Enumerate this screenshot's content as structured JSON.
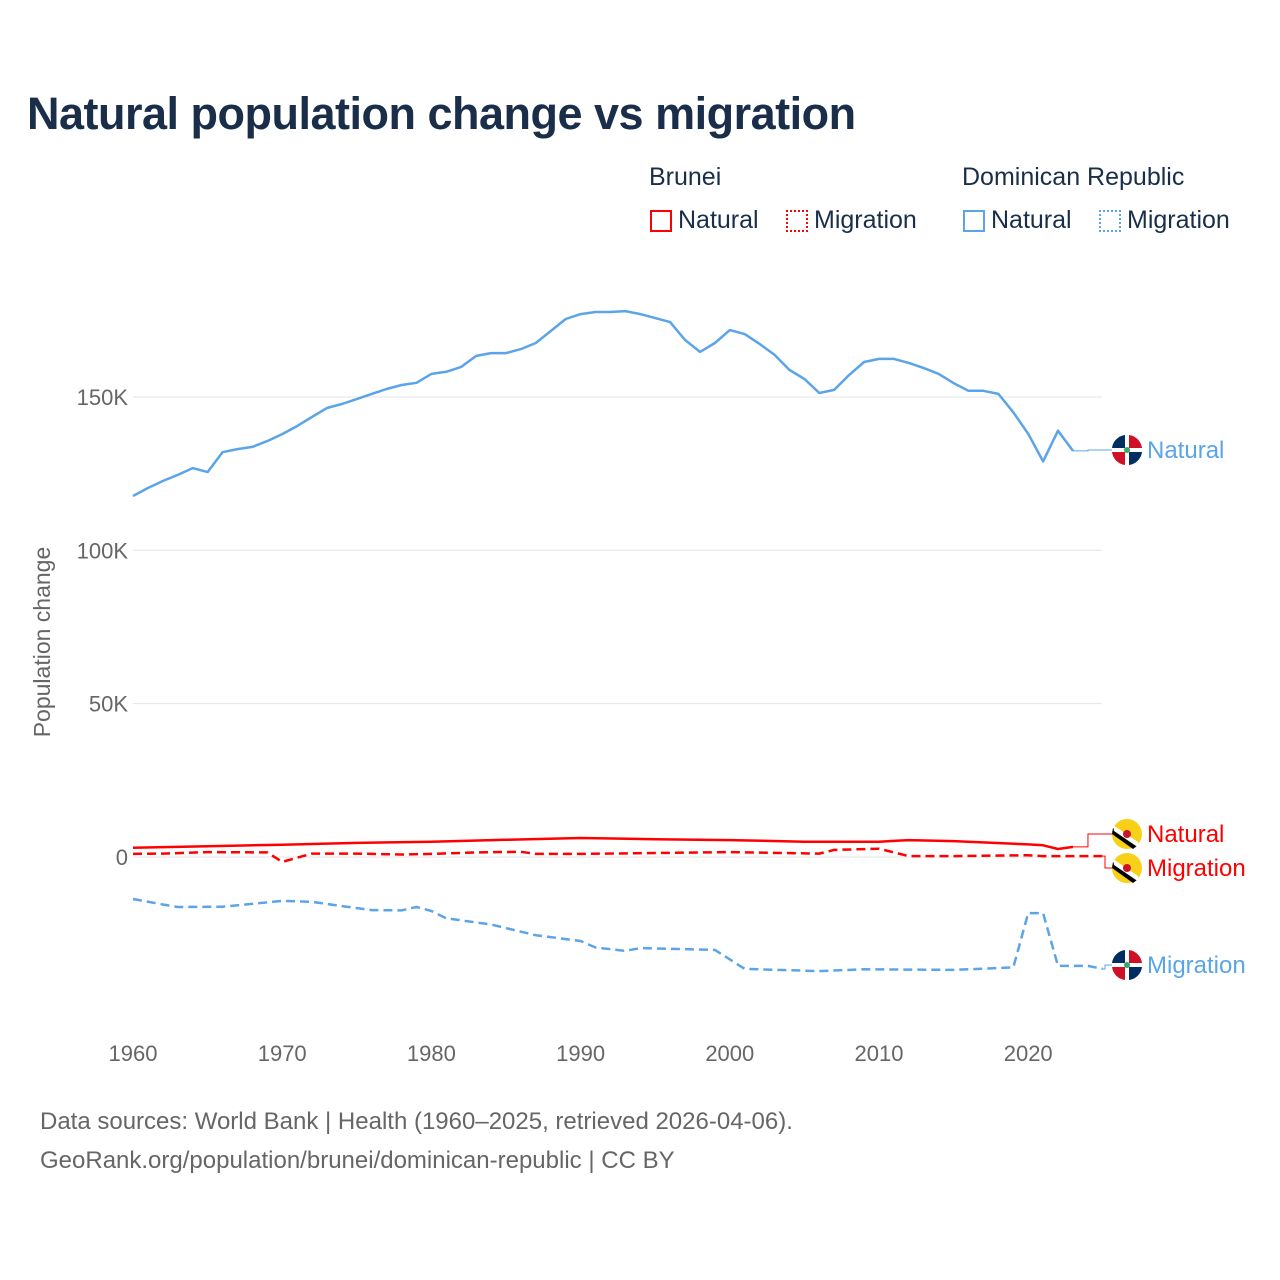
{
  "chart_data": {
    "type": "line",
    "title": "Natural population change vs migration",
    "ylabel": "Population change",
    "xlabel": "",
    "ylim": [
      -45000,
      190000
    ],
    "xlim": [
      1960,
      2025
    ],
    "grid": true,
    "x_ticks": [
      1960,
      1970,
      1980,
      1990,
      2000,
      2010,
      2020
    ],
    "x_tick_labels": [
      "1960",
      "1970",
      "1980",
      "1990",
      "2000",
      "2010",
      "2020"
    ],
    "y_ticks": [
      0,
      50000,
      100000,
      150000
    ],
    "y_tick_labels": [
      "0",
      "50K",
      "100K",
      "150K"
    ],
    "legend": {
      "placement": "top-right",
      "groups": [
        {
          "name": "Brunei",
          "items": [
            "Natural",
            "Migration"
          ]
        },
        {
          "name": "Dominican Republic",
          "items": [
            "Natural",
            "Migration"
          ]
        }
      ]
    },
    "series": [
      {
        "name": "Dominican Republic Natural",
        "country": "Dominican Republic",
        "kind": "Natural",
        "color": "#5ba4e8",
        "dashed": false,
        "end_label": "Natural",
        "flag": "dominican-republic-flag",
        "label_value": 132400,
        "x": [
          1960,
          1961,
          1962,
          1963,
          1964,
          1965,
          1966,
          1967,
          1968,
          1969,
          1970,
          1971,
          1972,
          1973,
          1974,
          1975,
          1976,
          1977,
          1978,
          1979,
          1980,
          1981,
          1982,
          1983,
          1984,
          1985,
          1986,
          1987,
          1988,
          1989,
          1990,
          1991,
          1992,
          1993,
          1994,
          1995,
          1996,
          1997,
          1998,
          1999,
          2000,
          2001,
          2002,
          2003,
          2004,
          2005,
          2006,
          2007,
          2008,
          2009,
          2010,
          2011,
          2012,
          2013,
          2014,
          2015,
          2016,
          2017,
          2018,
          2019,
          2020,
          2021,
          2022,
          2023
        ],
        "values": [
          117700,
          120300,
          122600,
          124600,
          126800,
          125500,
          132000,
          133000,
          133700,
          135600,
          137900,
          140500,
          143500,
          146400,
          147700,
          149300,
          151000,
          152600,
          153900,
          154600,
          157500,
          158200,
          159800,
          163400,
          164300,
          164300,
          165600,
          167600,
          171500,
          175400,
          177000,
          177700,
          177700,
          178000,
          177000,
          175700,
          174400,
          168600,
          164700,
          167600,
          171800,
          170500,
          167300,
          163700,
          158800,
          155900,
          151300,
          152300,
          157200,
          161400,
          162400,
          162400,
          161100,
          159400,
          157500,
          154500,
          152000,
          152000,
          151000,
          145000,
          138000,
          129000,
          139000,
          132400
        ]
      },
      {
        "name": "Dominican Republic Migration",
        "country": "Dominican Republic",
        "kind": "Migration",
        "color": "#5ba4e8",
        "dashed": true,
        "end_label": "Migration",
        "flag": "dominican-republic-flag",
        "label_value": -36500,
        "x": [
          1960,
          1962,
          1963,
          1966,
          1970,
          1972,
          1974,
          1976,
          1978,
          1979,
          1980,
          1981,
          1984,
          1987,
          1990,
          1991,
          1993,
          1994,
          1999,
          2001,
          2006,
          2009,
          2015,
          2019,
          2020,
          2021,
          2022,
          2024,
          2025
        ],
        "values": [
          -13700,
          -15500,
          -16300,
          -16200,
          -14300,
          -14600,
          -16000,
          -17300,
          -17400,
          -16300,
          -17600,
          -20000,
          -22000,
          -25500,
          -27400,
          -29500,
          -30600,
          -29700,
          -30300,
          -36500,
          -37200,
          -36600,
          -36800,
          -36000,
          -18300,
          -18300,
          -35500,
          -35500,
          -36500
        ]
      },
      {
        "name": "Brunei Natural",
        "country": "Brunei",
        "kind": "Natural",
        "color": "#ff0000",
        "dashed": false,
        "end_label": "Natural",
        "flag": "brunei-flag",
        "label_value": 7500,
        "x": [
          1960,
          1965,
          1970,
          1975,
          1980,
          1985,
          1990,
          1995,
          2000,
          2005,
          2010,
          2012,
          2015,
          2020,
          2021,
          2022,
          2023
        ],
        "values": [
          3000,
          3500,
          4000,
          4600,
          5000,
          5600,
          6200,
          5800,
          5500,
          5000,
          5000,
          5500,
          5200,
          4100,
          3800,
          2600,
          3300
        ]
      },
      {
        "name": "Brunei Migration",
        "country": "Brunei",
        "kind": "Migration",
        "color": "#ff0000",
        "dashed": true,
        "end_label": "Migration",
        "flag": "brunei-flag",
        "label_value": -3500,
        "x": [
          1960,
          1962,
          1965,
          1969,
          1970,
          1972,
          1975,
          1978,
          1980,
          1983,
          1986,
          1987,
          1990,
          1995,
          2000,
          2006,
          2007,
          2010,
          2012,
          2015,
          2020,
          2021,
          2025
        ],
        "values": [
          1000,
          1100,
          1600,
          1500,
          -1600,
          1100,
          1100,
          800,
          1000,
          1500,
          1700,
          1000,
          1000,
          1300,
          1600,
          1100,
          2300,
          2700,
          300,
          300,
          600,
          300,
          300
        ]
      }
    ]
  },
  "footer": {
    "line1": "Data sources: World Bank | Health (1960–2025, retrieved 2026-04-06).",
    "line2": "GeoRank.org/population/brunei/dominican-republic | CC BY"
  }
}
